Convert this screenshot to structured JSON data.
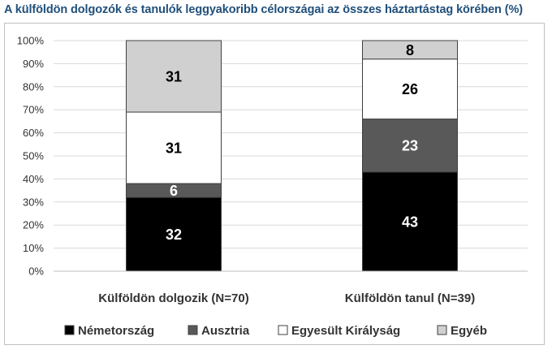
{
  "chart_data": {
    "type": "bar",
    "stacked": true,
    "title": "A külföldön dolgozók és tanulók leggyakoribb célországai az összes háztartástag körében (%)",
    "categories": [
      "Külföldön dolgozik (N=70)",
      "Külföldön tanul (N=39)"
    ],
    "series": [
      {
        "name": "Németország",
        "values": [
          32,
          43
        ],
        "color": "#000000",
        "label_color": "#ffffff"
      },
      {
        "name": "Ausztria",
        "values": [
          6,
          23
        ],
        "color": "#595959",
        "label_color": "#ffffff"
      },
      {
        "name": "Egyesült Királyság",
        "values": [
          31,
          26
        ],
        "color": "#ffffff",
        "label_color": "#000000"
      },
      {
        "name": "Egyéb",
        "values": [
          31,
          8
        ],
        "color": "#d0d0d0",
        "label_color": "#000000"
      }
    ],
    "y_ticks": [
      "0%",
      "10%",
      "20%",
      "30%",
      "40%",
      "50%",
      "60%",
      "70%",
      "80%",
      "90%",
      "100%"
    ],
    "ylim": [
      0,
      100
    ],
    "grid": true,
    "legend_position": "bottom"
  }
}
